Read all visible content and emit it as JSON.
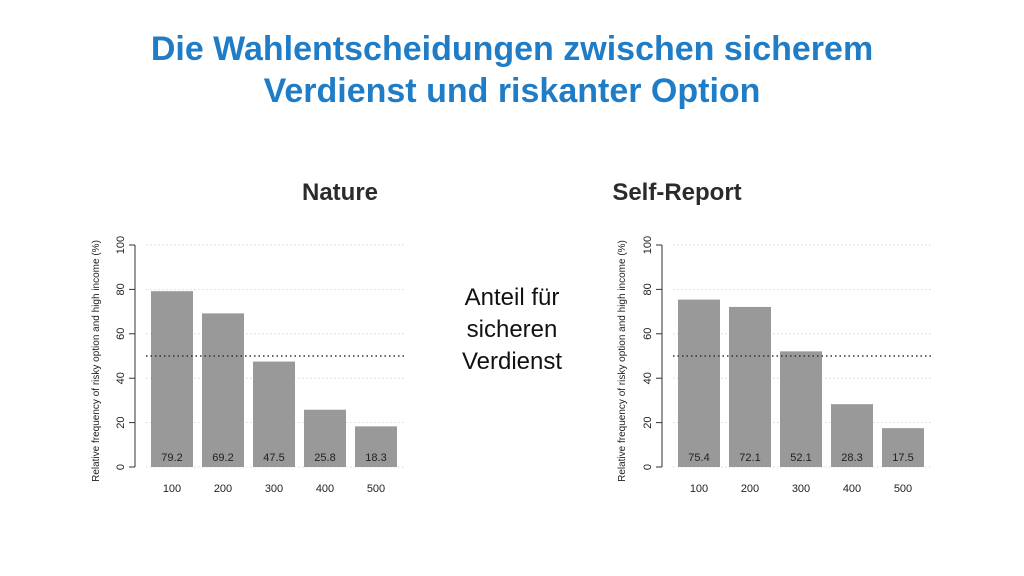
{
  "slide": {
    "title_line1": "Die Wahlentscheidungen zwischen sicherem",
    "title_line2": "Verdienst und riskanter Option",
    "annotation_line1": "Anteil für",
    "annotation_line2": "sicheren",
    "annotation_line3": "Verdienst"
  },
  "colors": {
    "title": "#1f7cc6",
    "bar": "#999999",
    "reference_line": "#333333",
    "grid": "#cccccc"
  },
  "chart_data": [
    {
      "type": "bar",
      "title": "Nature",
      "ylabel": "Relative frequency of risky option and high income (%)",
      "xlabel": "",
      "categories": [
        "100",
        "200",
        "300",
        "400",
        "500"
      ],
      "values": [
        79.2,
        69.2,
        47.5,
        25.8,
        18.3
      ],
      "value_labels": [
        "79.2",
        "69.2",
        "47.5",
        "25.8",
        "18.3"
      ],
      "ylim": [
        0,
        100
      ],
      "yticks": [
        0,
        20,
        40,
        60,
        80,
        100
      ],
      "ytick_labels": [
        "0",
        "20",
        "40",
        "60",
        "80",
        "100"
      ],
      "reference_line": 50,
      "grid": true
    },
    {
      "type": "bar",
      "title": "Self-Report",
      "ylabel": "Relative frequency of risky option and high income (%)",
      "xlabel": "",
      "categories": [
        "100",
        "200",
        "300",
        "400",
        "500"
      ],
      "values": [
        75.4,
        72.1,
        52.1,
        28.3,
        17.5
      ],
      "value_labels": [
        "75.4",
        "72.1",
        "52.1",
        "28.3",
        "17.5"
      ],
      "ylim": [
        0,
        100
      ],
      "yticks": [
        0,
        20,
        40,
        60,
        80,
        100
      ],
      "ytick_labels": [
        "0",
        "20",
        "40",
        "60",
        "80",
        "100"
      ],
      "reference_line": 50,
      "grid": true
    }
  ]
}
